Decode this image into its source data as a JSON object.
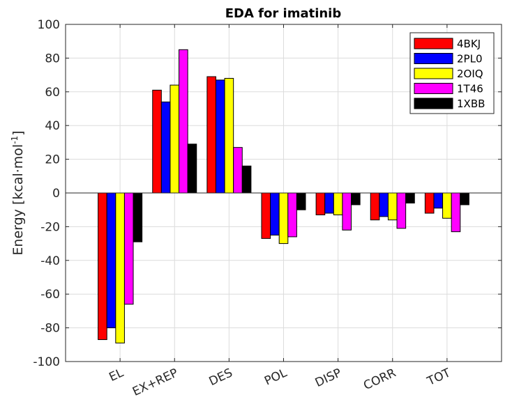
{
  "chart_data": {
    "type": "bar",
    "title": "EDA for imatinib",
    "xlabel": "",
    "ylabel_main": "Energy [kcal·mol",
    "ylabel_sup": "-1",
    "ylabel_end": "]",
    "ylim": [
      -100,
      100
    ],
    "yticks": [
      -100,
      -80,
      -60,
      -40,
      -20,
      0,
      20,
      40,
      60,
      80,
      100
    ],
    "grid": true,
    "legend_position": "top-right",
    "categories": [
      "EL",
      "EX+REP",
      "DES",
      "POL",
      "DISP",
      "CORR",
      "TOT"
    ],
    "series": [
      {
        "name": "4BKJ",
        "color": "#ff0000",
        "values": [
          -87,
          61,
          69,
          -27,
          -13,
          -16,
          -12
        ]
      },
      {
        "name": "2PL0",
        "color": "#0000ff",
        "values": [
          -80,
          54,
          67,
          -25,
          -12,
          -14,
          -9
        ]
      },
      {
        "name": "2OIQ",
        "color": "#ffff00",
        "values": [
          -89,
          64,
          68,
          -30,
          -13,
          -16,
          -15
        ]
      },
      {
        "name": "1T46",
        "color": "#ff00ff",
        "values": [
          -66,
          85,
          27,
          -26,
          -22,
          -21,
          -23
        ]
      },
      {
        "name": "1XBB",
        "color": "#000000",
        "values": [
          -29,
          29,
          16,
          -10,
          -7,
          -6,
          -7
        ]
      }
    ]
  }
}
